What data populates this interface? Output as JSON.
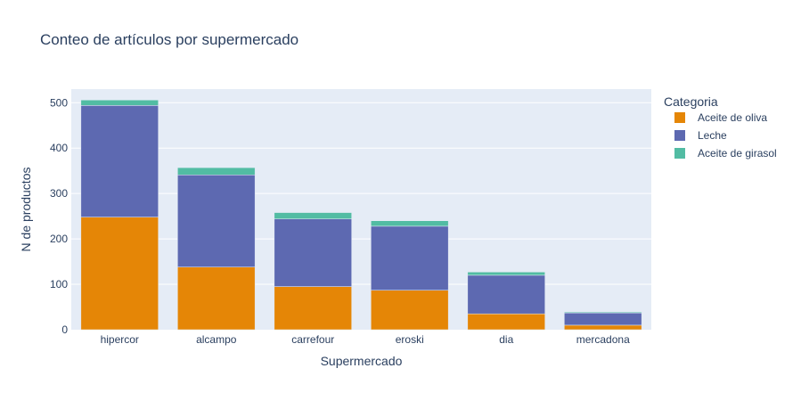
{
  "chart_data": {
    "type": "bar",
    "barmode": "stack",
    "title": "Conteo de artículos por supermercado",
    "xlabel": "Supermercado",
    "ylabel": "N de productos",
    "categories": [
      "hipercor",
      "alcampo",
      "carrefour",
      "eroski",
      "dia",
      "mercadona"
    ],
    "ylim": [
      0,
      530
    ],
    "yticks": [
      0,
      100,
      200,
      300,
      400,
      500
    ],
    "grid": true,
    "legend": {
      "title": "Categoria",
      "placement": "top-right"
    },
    "series": [
      {
        "name": "Aceite de oliva",
        "color": "#E58606",
        "values": [
          248,
          138,
          95,
          87,
          35,
          10
        ]
      },
      {
        "name": "Leche",
        "color": "#5D69B1",
        "values": [
          246,
          203,
          149,
          141,
          85,
          27
        ]
      },
      {
        "name": "Aceite de girasol",
        "color": "#52BCA3",
        "values": [
          12,
          16,
          14,
          12,
          7,
          2
        ]
      }
    ],
    "colors": {
      "plot_bg": "#E5ECF6",
      "grid": "#ffffff",
      "text": "#2a3f5f"
    }
  }
}
